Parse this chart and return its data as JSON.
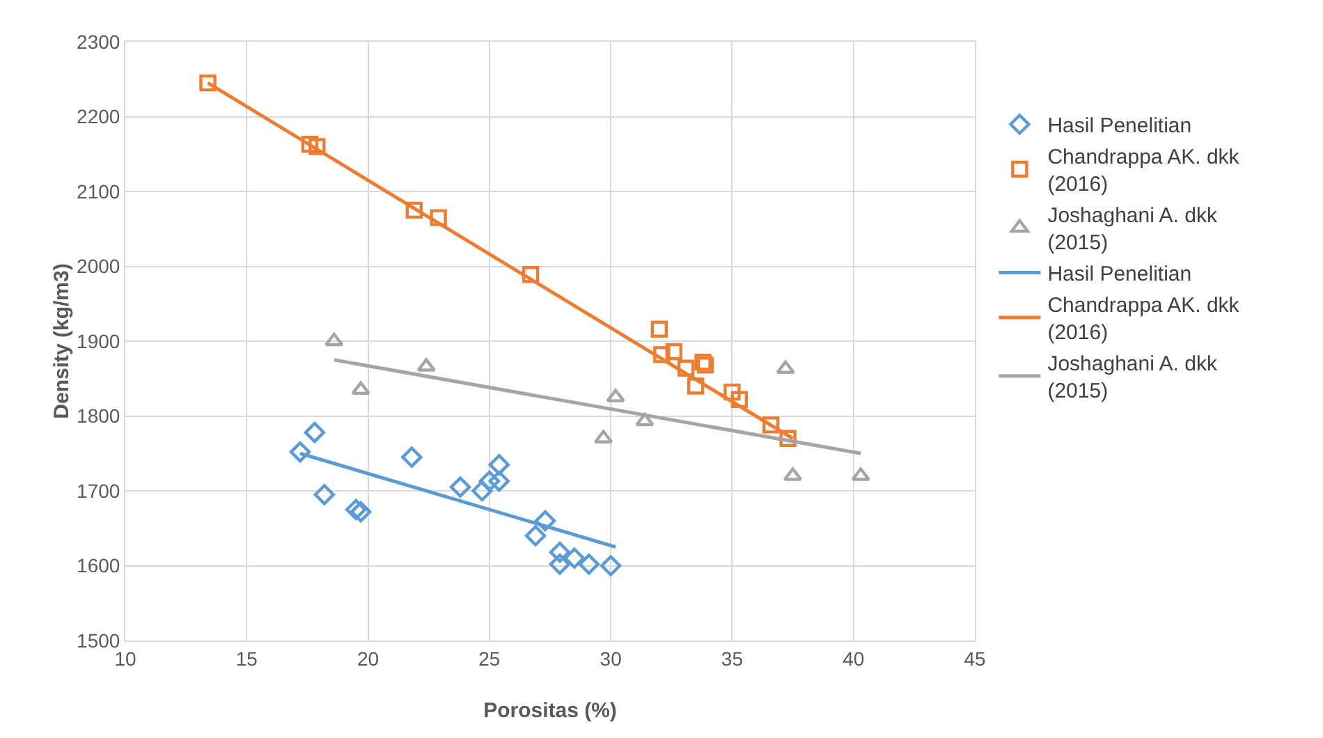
{
  "chart_data": {
    "type": "scatter",
    "xlabel": "Porositas (%)",
    "ylabel": "Density (kg/m3)",
    "xlim": [
      10,
      45
    ],
    "xticks": [
      10,
      15,
      20,
      25,
      30,
      35,
      40,
      45
    ],
    "ylim": [
      1500,
      2300
    ],
    "yticks": [
      1500,
      1600,
      1700,
      1800,
      1900,
      2000,
      2100,
      2200,
      2300
    ],
    "grid": true,
    "legend": "right",
    "series": [
      {
        "name": "Hasil Penelitian",
        "marker": "diamond",
        "color": "#5b9bd5",
        "x": [
          17.2,
          17.8,
          18.2,
          19.5,
          19.7,
          21.8,
          23.8,
          24.7,
          25.0,
          25.4,
          25.4,
          26.9,
          27.3,
          27.9,
          27.9,
          28.5,
          29.1,
          30.0
        ],
        "values": [
          1752,
          1778,
          1695,
          1675,
          1672,
          1745,
          1705,
          1700,
          1713,
          1735,
          1713,
          1640,
          1660,
          1618,
          1602,
          1610,
          1602,
          1600
        ]
      },
      {
        "name": "Chandrappa AK. dkk (2016)",
        "marker": "square",
        "color": "#ed7d31",
        "x": [
          13.4,
          17.6,
          17.9,
          21.9,
          22.9,
          26.7,
          32.0,
          32.1,
          32.6,
          33.1,
          33.5,
          33.8,
          33.9,
          35.0,
          35.3,
          36.6,
          37.3
        ],
        "values": [
          2245,
          2163,
          2160,
          2075,
          2065,
          1989,
          1916,
          1882,
          1886,
          1864,
          1840,
          1872,
          1868,
          1832,
          1822,
          1788,
          1770
        ]
      },
      {
        "name": "Joshaghani A. dkk (2015)",
        "marker": "triangle",
        "color": "#a5a5a5",
        "x": [
          18.6,
          19.7,
          22.4,
          29.7,
          30.2,
          31.4,
          37.2,
          37.5,
          40.3
        ],
        "values": [
          1900,
          1835,
          1866,
          1770,
          1825,
          1793,
          1863,
          1720,
          1720
        ]
      },
      {
        "name": "Hasil Penelitian",
        "type": "line",
        "marker": "none",
        "color": "#5b9bd5",
        "x": [
          17.2,
          30.2
        ],
        "values": [
          1750,
          1625
        ]
      },
      {
        "name": "Chandrappa AK. dkk (2016)",
        "type": "line",
        "marker": "none",
        "color": "#ed7d31",
        "x": [
          13.4,
          37.5
        ],
        "values": [
          2245,
          1770
        ]
      },
      {
        "name": "Joshaghani A. dkk (2015)",
        "type": "line",
        "marker": "none",
        "color": "#a5a5a5",
        "x": [
          18.6,
          40.3
        ],
        "values": [
          1875,
          1750
        ]
      }
    ]
  }
}
